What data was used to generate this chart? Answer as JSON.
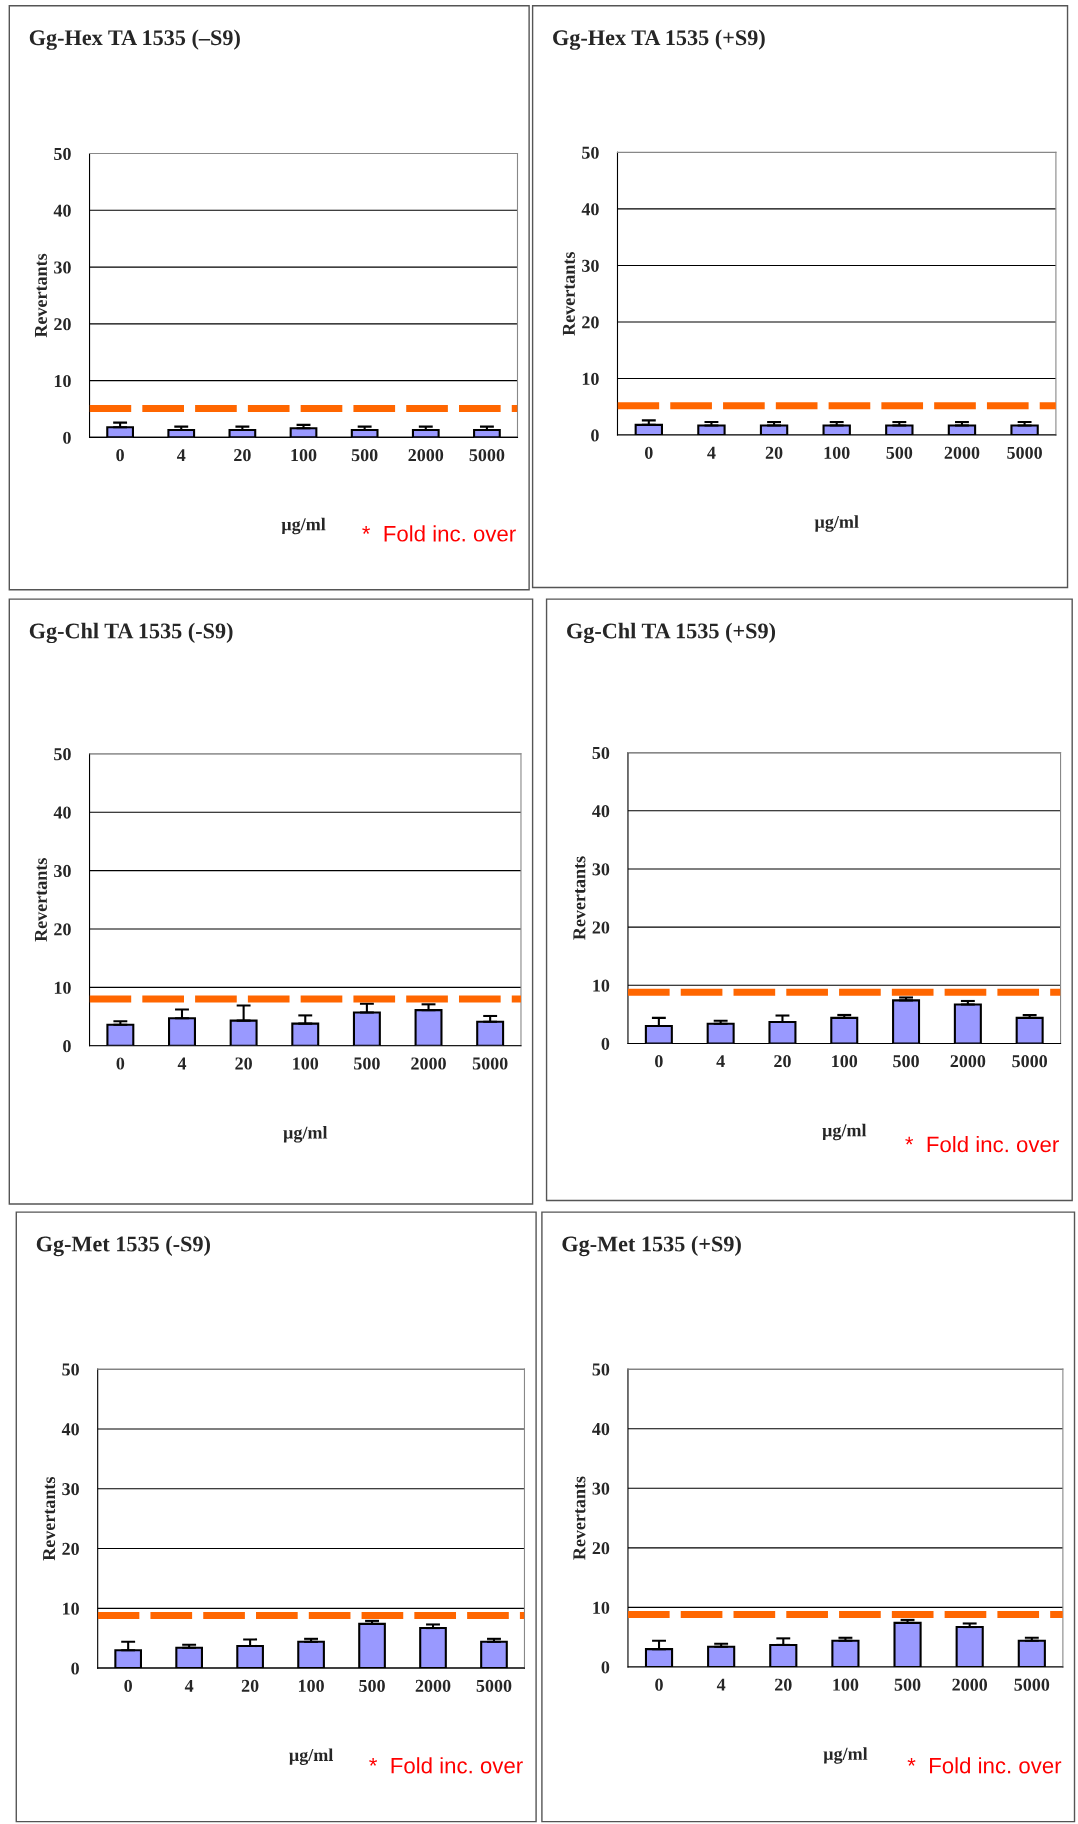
{
  "chart_data": [
    {
      "type": "bar",
      "title": "Gg-Hex TA 1535 (–S9)",
      "xlabel": "µg/ml",
      "ylabel": "Revertants",
      "categories": [
        "0",
        "4",
        "20",
        "100",
        "500",
        "2000",
        "5000"
      ],
      "values": [
        1.8,
        1.3,
        1.3,
        1.6,
        1.3,
        1.3,
        1.3
      ],
      "errors": [
        [
          1.8,
          2.6
        ],
        [
          1.3,
          1.9
        ],
        [
          1.3,
          1.9
        ],
        [
          1.6,
          2.2
        ],
        [
          1.3,
          1.9
        ],
        [
          1.3,
          1.9
        ],
        [
          1.3,
          1.9
        ]
      ],
      "color": "#9999ff",
      "ylim": [
        0,
        50
      ],
      "yticks": [
        0,
        10,
        20,
        30,
        40,
        50
      ],
      "grid": "y",
      "ref_lines": [
        {
          "axis": "y",
          "value": 5.1,
          "color": "#ff6600",
          "line_style": "dashed"
        }
      ],
      "annotations": [
        "*  Fold inc. over"
      ]
    },
    {
      "type": "bar",
      "title": "Gg-Hex TA 1535 (+S9)",
      "xlabel": "µg/ml",
      "ylabel": "Revertants",
      "categories": [
        "0",
        "4",
        "20",
        "100",
        "500",
        "2000",
        "5000"
      ],
      "values": [
        1.8,
        1.7,
        1.7,
        1.7,
        1.7,
        1.7,
        1.7
      ],
      "errors": [
        [
          1.8,
          2.6
        ],
        [
          1.7,
          2.3
        ],
        [
          1.7,
          2.3
        ],
        [
          1.7,
          2.3
        ],
        [
          1.7,
          2.3
        ],
        [
          1.7,
          2.3
        ],
        [
          1.7,
          2.3
        ]
      ],
      "color": "#9999ff",
      "ylim": [
        0,
        50
      ],
      "yticks": [
        0,
        10,
        20,
        30,
        40,
        50
      ],
      "grid": "y",
      "ref_lines": [
        {
          "axis": "y",
          "value": 5.2,
          "color": "#ff6600",
          "line_style": "dashed"
        }
      ]
    },
    {
      "type": "bar",
      "title": "Gg-Chl TA 1535 (-S9)",
      "xlabel": "µg/ml",
      "ylabel": "Revertants",
      "categories": [
        "0",
        "4",
        "20",
        "100",
        "500",
        "2000",
        "5000"
      ],
      "values": [
        3.6,
        4.7,
        4.3,
        3.8,
        5.7,
        6.1,
        4.1
      ],
      "errors": [
        [
          3.6,
          4.2
        ],
        [
          4.7,
          6.2
        ],
        [
          4.3,
          6.9
        ],
        [
          3.8,
          5.2
        ],
        [
          5.7,
          7.2
        ],
        [
          6.1,
          7.1
        ],
        [
          4.1,
          5.1
        ]
      ],
      "color": "#9999ff",
      "ylim": [
        0,
        50
      ],
      "yticks": [
        0,
        10,
        20,
        30,
        40,
        50
      ],
      "grid": "y",
      "ref_lines": [
        {
          "axis": "y",
          "value": 8.0,
          "color": "#ff6600",
          "line_style": "dashed"
        }
      ]
    },
    {
      "type": "bar",
      "title": "Gg-Chl TA 1535 (+S9)",
      "xlabel": "µg/ml",
      "ylabel": "Revertants",
      "categories": [
        "0",
        "4",
        "20",
        "100",
        "500",
        "2000",
        "5000"
      ],
      "values": [
        3.0,
        3.4,
        3.7,
        4.4,
        7.4,
        6.7,
        4.4
      ],
      "errors": [
        [
          3.0,
          4.4
        ],
        [
          3.4,
          3.9
        ],
        [
          3.7,
          4.8
        ],
        [
          4.4,
          4.9
        ],
        [
          7.4,
          7.9
        ],
        [
          6.7,
          7.3
        ],
        [
          4.4,
          4.9
        ]
      ],
      "color": "#9999ff",
      "ylim": [
        0,
        50
      ],
      "yticks": [
        0,
        10,
        20,
        30,
        40,
        50
      ],
      "grid": "y",
      "ref_lines": [
        {
          "axis": "y",
          "value": 8.8,
          "color": "#ff6600",
          "line_style": "dashed"
        }
      ],
      "annotations": [
        "*  Fold inc. over"
      ]
    },
    {
      "type": "bar",
      "title": "Gg-Met 1535 (-S9)",
      "xlabel": "µg/ml",
      "ylabel": "Revertants",
      "categories": [
        "0",
        "4",
        "20",
        "100",
        "500",
        "2000",
        "5000"
      ],
      "values": [
        3.0,
        3.4,
        3.7,
        4.4,
        7.4,
        6.7,
        4.4
      ],
      "errors": [
        [
          3.0,
          4.4
        ],
        [
          3.4,
          3.9
        ],
        [
          3.7,
          4.8
        ],
        [
          4.4,
          4.9
        ],
        [
          7.4,
          7.9
        ],
        [
          6.7,
          7.3
        ],
        [
          4.4,
          4.9
        ]
      ],
      "color": "#9999ff",
      "ylim": [
        0,
        50
      ],
      "yticks": [
        0,
        10,
        20,
        30,
        40,
        50
      ],
      "grid": "y",
      "ref_lines": [
        {
          "axis": "y",
          "value": 8.8,
          "color": "#ff6600",
          "line_style": "dashed"
        }
      ],
      "annotations": [
        "*  Fold inc. over"
      ]
    },
    {
      "type": "bar",
      "title": "Gg-Met 1535 (+S9)",
      "xlabel": "µg/ml",
      "ylabel": "Revertants",
      "categories": [
        "0",
        "4",
        "20",
        "100",
        "500",
        "2000",
        "5000"
      ],
      "values": [
        3.0,
        3.4,
        3.7,
        4.4,
        7.4,
        6.7,
        4.4
      ],
      "errors": [
        [
          3.0,
          4.4
        ],
        [
          3.4,
          3.9
        ],
        [
          3.7,
          4.8
        ],
        [
          4.4,
          4.9
        ],
        [
          7.4,
          7.9
        ],
        [
          6.7,
          7.3
        ],
        [
          4.4,
          4.9
        ]
      ],
      "color": "#9999ff",
      "ylim": [
        0,
        50
      ],
      "yticks": [
        0,
        10,
        20,
        30,
        40,
        50
      ],
      "grid": "y",
      "ref_lines": [
        {
          "axis": "y",
          "value": 8.8,
          "color": "#ff6600",
          "line_style": "dashed"
        }
      ],
      "annotations": [
        "*  Fold inc. over"
      ]
    }
  ]
}
